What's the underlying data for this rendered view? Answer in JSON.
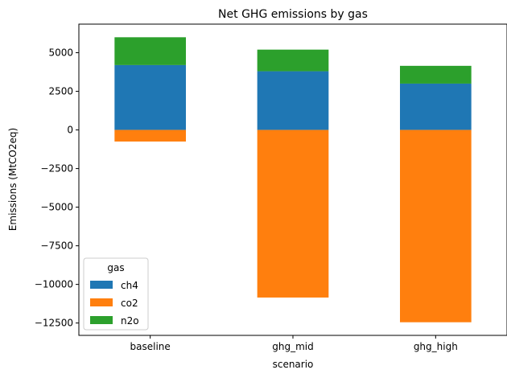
{
  "chart_data": {
    "type": "bar",
    "stacked": true,
    "title": "Net GHG emissions by gas",
    "xlabel": "scenario",
    "ylabel": "Emissions (MtCO2eq)",
    "categories": [
      "baseline",
      "ghg_mid",
      "ghg_high"
    ],
    "series": [
      {
        "name": "ch4",
        "color": "#1f77b4",
        "values": [
          4200,
          3800,
          3000
        ]
      },
      {
        "name": "co2",
        "color": "#ff7f0e",
        "values": [
          -750,
          -10850,
          -12450
        ]
      },
      {
        "name": "n2o",
        "color": "#2ca02c",
        "values": [
          1800,
          1400,
          1150
        ]
      }
    ],
    "ylim": [
      -13300,
      6850
    ],
    "yticks": [
      5000,
      2500,
      0,
      -2500,
      -5000,
      -7500,
      -10000,
      -12500
    ],
    "ytick_labels": [
      "5000",
      "2500",
      "0",
      "−2500",
      "−5000",
      "−7500",
      "−10000",
      "−12500"
    ],
    "grid": false,
    "legend": {
      "title": "gas",
      "position": "lower-left"
    }
  }
}
